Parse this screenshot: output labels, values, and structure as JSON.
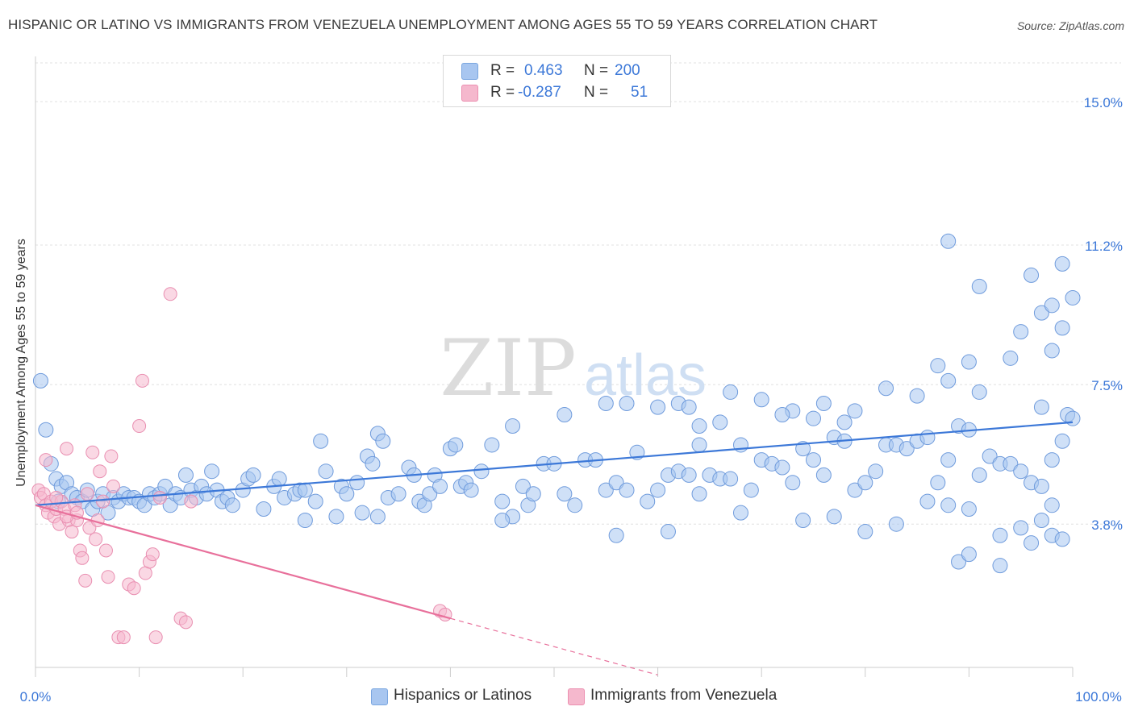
{
  "title": "HISPANIC OR LATINO VS IMMIGRANTS FROM VENEZUELA UNEMPLOYMENT AMONG AGES 55 TO 59 YEARS CORRELATION CHART",
  "source": "Source: ZipAtlas.com",
  "watermark": {
    "zip": "ZIP",
    "atlas": "atlas"
  },
  "colors": {
    "blue": "#3c78d8",
    "blue_fill": "#a8c6f0",
    "pink": "#e8709b",
    "pink_fill": "#f5b8cd",
    "grid": "#e0e0e0"
  },
  "legend": {
    "rows": [
      {
        "r_label": "R =",
        "r_value": "0.463",
        "n_label": "N =",
        "n_value": "200"
      },
      {
        "r_label": "R =",
        "r_value": "-0.287",
        "n_label": "N =",
        "n_value": "51"
      }
    ]
  },
  "bottom_legend": {
    "series1": "Hispanics or Latinos",
    "series2": "Immigrants from Venezuela"
  },
  "chart_data": {
    "type": "scatter",
    "ylabel": "Unemployment Among Ages 55 to 59 years",
    "xlim": [
      0,
      100
    ],
    "ylim": [
      0,
      16.2
    ],
    "x_tick_labels": [
      "0.0%",
      "100.0%"
    ],
    "y_ticks": [
      3.8,
      7.5,
      11.2,
      15.0
    ],
    "y_tick_labels": [
      "3.8%",
      "7.5%",
      "11.2%",
      "15.0%"
    ],
    "series": [
      {
        "name": "Hispanics or Latinos",
        "trend": {
          "x": [
            0,
            100
          ],
          "y": [
            4.3,
            6.5
          ]
        },
        "points": [
          [
            0.5,
            7.6
          ],
          [
            1,
            6.3
          ],
          [
            1.5,
            5.4
          ],
          [
            2,
            5
          ],
          [
            2.2,
            4.4
          ],
          [
            2.5,
            4.8
          ],
          [
            3,
            4.9
          ],
          [
            3.5,
            4.6
          ],
          [
            4,
            4.5
          ],
          [
            4.5,
            4.4
          ],
          [
            5,
            4.7
          ],
          [
            5.5,
            4.2
          ],
          [
            6,
            4.4
          ],
          [
            6.5,
            4.6
          ],
          [
            7,
            4.1
          ],
          [
            7.5,
            4.5
          ],
          [
            8,
            4.4
          ],
          [
            8.5,
            4.6
          ],
          [
            9,
            4.5
          ],
          [
            9.5,
            4.5
          ],
          [
            10,
            4.4
          ],
          [
            10.5,
            4.3
          ],
          [
            11,
            4.6
          ],
          [
            11.5,
            4.5
          ],
          [
            12,
            4.6
          ],
          [
            12.5,
            4.8
          ],
          [
            13,
            4.3
          ],
          [
            13.5,
            4.6
          ],
          [
            14,
            4.5
          ],
          [
            14.5,
            5.1
          ],
          [
            15,
            4.7
          ],
          [
            15.5,
            4.5
          ],
          [
            16,
            4.8
          ],
          [
            16.5,
            4.6
          ],
          [
            17,
            5.2
          ],
          [
            17.5,
            4.7
          ],
          [
            18,
            4.4
          ],
          [
            18.5,
            4.5
          ],
          [
            19,
            4.3
          ],
          [
            20,
            4.7
          ],
          [
            20.5,
            5.0
          ],
          [
            21,
            5.1
          ],
          [
            22,
            4.2
          ],
          [
            23,
            4.8
          ],
          [
            23.5,
            5.0
          ],
          [
            24,
            4.5
          ],
          [
            25,
            4.6
          ],
          [
            25.5,
            4.7
          ],
          [
            26,
            4.7
          ],
          [
            27,
            4.4
          ],
          [
            27.5,
            6.0
          ],
          [
            28,
            5.2
          ],
          [
            29,
            4.0
          ],
          [
            29.5,
            4.8
          ],
          [
            30,
            4.6
          ],
          [
            31,
            4.9
          ],
          [
            31.5,
            4.1
          ],
          [
            32,
            5.6
          ],
          [
            32.5,
            5.4
          ],
          [
            33,
            6.2
          ],
          [
            33.5,
            6.0
          ],
          [
            34,
            4.5
          ],
          [
            35,
            4.6
          ],
          [
            36,
            5.3
          ],
          [
            36.5,
            5.1
          ],
          [
            37,
            4.4
          ],
          [
            37.5,
            4.3
          ],
          [
            38,
            4.6
          ],
          [
            38.5,
            5.1
          ],
          [
            39,
            4.8
          ],
          [
            40,
            5.8
          ],
          [
            40.5,
            5.9
          ],
          [
            41,
            4.8
          ],
          [
            41.5,
            4.9
          ],
          [
            42,
            4.7
          ],
          [
            43,
            5.2
          ],
          [
            44,
            5.9
          ],
          [
            45,
            4.4
          ],
          [
            46,
            4.0
          ],
          [
            47,
            4.8
          ],
          [
            47.5,
            4.3
          ],
          [
            48,
            4.6
          ],
          [
            49,
            5.4
          ],
          [
            50,
            5.4
          ],
          [
            51,
            4.6
          ],
          [
            52,
            4.3
          ],
          [
            53,
            5.5
          ],
          [
            54,
            5.5
          ],
          [
            55,
            4.7
          ],
          [
            56,
            4.9
          ],
          [
            57,
            4.7
          ],
          [
            58,
            5.7
          ],
          [
            59,
            4.4
          ],
          [
            60,
            4.7
          ],
          [
            61,
            5.1
          ],
          [
            62,
            5.2
          ],
          [
            63,
            5.1
          ],
          [
            64,
            5.9
          ],
          [
            65,
            5.1
          ],
          [
            66,
            5.0
          ],
          [
            67,
            5.0
          ],
          [
            68,
            5.9
          ],
          [
            69,
            4.7
          ],
          [
            70,
            5.5
          ],
          [
            71,
            5.4
          ],
          [
            72,
            5.3
          ],
          [
            73,
            4.9
          ],
          [
            74,
            5.8
          ],
          [
            75,
            5.5
          ],
          [
            76,
            5.1
          ],
          [
            77,
            6.1
          ],
          [
            78,
            6.0
          ],
          [
            79,
            4.7
          ],
          [
            80,
            4.9
          ],
          [
            81,
            5.2
          ],
          [
            82,
            5.9
          ],
          [
            83,
            5.9
          ],
          [
            84,
            5.8
          ],
          [
            85,
            6.0
          ],
          [
            86,
            6.1
          ],
          [
            87,
            4.9
          ],
          [
            88,
            5.5
          ],
          [
            89,
            6.4
          ],
          [
            90,
            6.3
          ],
          [
            91,
            5.1
          ],
          [
            92,
            5.6
          ],
          [
            93,
            5.4
          ],
          [
            94,
            5.4
          ],
          [
            95,
            5.2
          ],
          [
            96,
            4.9
          ],
          [
            97,
            4.8
          ],
          [
            98,
            5.5
          ],
          [
            99,
            6.0
          ],
          [
            99.5,
            6.7
          ],
          [
            26,
            3.9
          ],
          [
            33,
            4.0
          ],
          [
            45,
            3.9
          ],
          [
            56,
            3.5
          ],
          [
            61,
            3.6
          ],
          [
            64,
            4.6
          ],
          [
            68,
            4.1
          ],
          [
            74,
            3.9
          ],
          [
            77,
            4.0
          ],
          [
            80,
            3.6
          ],
          [
            83,
            3.8
          ],
          [
            86,
            4.4
          ],
          [
            88,
            4.3
          ],
          [
            90,
            4.2
          ],
          [
            93,
            3.5
          ],
          [
            95,
            3.7
          ],
          [
            97,
            3.9
          ],
          [
            98,
            4.3
          ],
          [
            55,
            7.0
          ],
          [
            62,
            7.0
          ],
          [
            66,
            6.5
          ],
          [
            70,
            7.1
          ],
          [
            73,
            6.8
          ],
          [
            76,
            7.0
          ],
          [
            79,
            6.8
          ],
          [
            82,
            7.4
          ],
          [
            85,
            7.2
          ],
          [
            87,
            8.0
          ],
          [
            88,
            7.6
          ],
          [
            90,
            8.1
          ],
          [
            91,
            7.3
          ],
          [
            94,
            8.2
          ],
          [
            95,
            8.9
          ],
          [
            97,
            6.9
          ],
          [
            98,
            8.4
          ],
          [
            99,
            9.0
          ],
          [
            100,
            6.6
          ],
          [
            89,
            2.8
          ],
          [
            90,
            3.0
          ],
          [
            93,
            2.7
          ],
          [
            96,
            3.3
          ],
          [
            98,
            3.5
          ],
          [
            99,
            3.4
          ],
          [
            88,
            11.3
          ],
          [
            91,
            10.1
          ],
          [
            96,
            10.4
          ],
          [
            97,
            9.4
          ],
          [
            98,
            9.6
          ],
          [
            99,
            10.7
          ],
          [
            100,
            9.8
          ],
          [
            46,
            6.4
          ],
          [
            51,
            6.7
          ],
          [
            57,
            7.0
          ],
          [
            60,
            6.9
          ],
          [
            63,
            6.9
          ],
          [
            64,
            6.4
          ],
          [
            67,
            7.3
          ],
          [
            72,
            6.7
          ],
          [
            75,
            6.6
          ],
          [
            78,
            6.5
          ]
        ]
      },
      {
        "name": "Immigrants from Venezuela",
        "trend": {
          "x": [
            0,
            40
          ],
          "y": [
            4.3,
            1.3
          ]
        },
        "trend_extension": {
          "x": [
            40,
            60
          ],
          "y": [
            1.3,
            -0.2
          ]
        },
        "points": [
          [
            0.3,
            4.7
          ],
          [
            0.5,
            4.5
          ],
          [
            0.8,
            4.6
          ],
          [
            1,
            4.3
          ],
          [
            1.2,
            4.1
          ],
          [
            1.5,
            4.4
          ],
          [
            1.8,
            4.0
          ],
          [
            2,
            4.2
          ],
          [
            2.3,
            3.8
          ],
          [
            2.5,
            4.4
          ],
          [
            2.8,
            4.2
          ],
          [
            3,
            5.8
          ],
          [
            3.2,
            3.9
          ],
          [
            3.5,
            3.6
          ],
          [
            3.8,
            4.3
          ],
          [
            4,
            3.9
          ],
          [
            4.3,
            3.1
          ],
          [
            4.5,
            2.9
          ],
          [
            4.8,
            2.3
          ],
          [
            5,
            4.6
          ],
          [
            5.2,
            3.7
          ],
          [
            5.5,
            5.7
          ],
          [
            5.8,
            3.4
          ],
          [
            6,
            3.9
          ],
          [
            6.2,
            5.2
          ],
          [
            6.5,
            4.4
          ],
          [
            6.8,
            3.1
          ],
          [
            7,
            2.4
          ],
          [
            7.3,
            5.6
          ],
          [
            7.5,
            4.8
          ],
          [
            8,
            0.8
          ],
          [
            8.5,
            0.8
          ],
          [
            9,
            2.2
          ],
          [
            9.5,
            2.1
          ],
          [
            10,
            6.4
          ],
          [
            10.3,
            7.6
          ],
          [
            10.6,
            2.5
          ],
          [
            11,
            2.8
          ],
          [
            11.3,
            3.0
          ],
          [
            11.6,
            0.8
          ],
          [
            12,
            4.5
          ],
          [
            13,
            9.9
          ],
          [
            14,
            1.3
          ],
          [
            14.5,
            1.2
          ],
          [
            15,
            4.4
          ],
          [
            39,
            1.5
          ],
          [
            39.5,
            1.4
          ],
          [
            1,
            5.5
          ],
          [
            2,
            4.5
          ],
          [
            3,
            4.0
          ],
          [
            4,
            4.1
          ]
        ]
      }
    ]
  }
}
